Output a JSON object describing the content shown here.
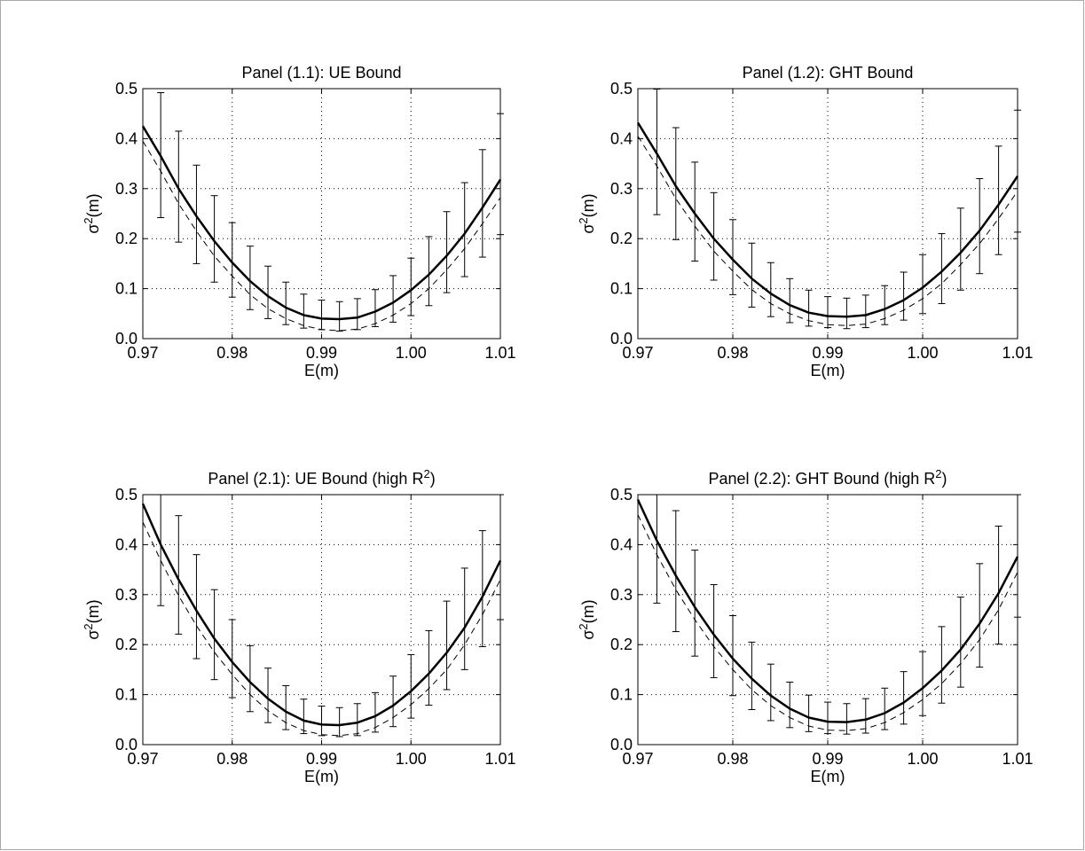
{
  "chart_data": [
    {
      "type": "line",
      "title": "Panel (1.1): UE Bound",
      "xlabel": "E(m)",
      "ylabel": "σ²(m)",
      "xlim": [
        0.97,
        1.01
      ],
      "ylim": [
        0.0,
        0.5
      ],
      "xticks": [
        "0.97",
        "0.98",
        "0.99",
        "1.00",
        "1.01"
      ],
      "yticks": [
        "0.0",
        "0.1",
        "0.2",
        "0.3",
        "0.4",
        "0.5"
      ],
      "grid": true,
      "x": [
        0.97,
        0.972,
        0.974,
        0.976,
        0.978,
        0.98,
        0.982,
        0.984,
        0.986,
        0.988,
        0.99,
        0.992,
        0.994,
        0.996,
        0.998,
        1.0,
        1.002,
        1.004,
        1.006,
        1.008,
        1.01
      ],
      "series": [
        {
          "style": "solid",
          "values": [
            0.425,
            0.365,
            0.3,
            0.245,
            0.195,
            0.152,
            0.115,
            0.085,
            0.062,
            0.047,
            0.04,
            0.039,
            0.042,
            0.054,
            0.072,
            0.097,
            0.128,
            0.166,
            0.21,
            0.262,
            0.318
          ]
        },
        {
          "style": "dashed",
          "values": [
            0.395,
            0.335,
            0.27,
            0.215,
            0.165,
            0.125,
            0.088,
            0.06,
            0.04,
            0.026,
            0.018,
            0.016,
            0.019,
            0.03,
            0.047,
            0.07,
            0.1,
            0.138,
            0.18,
            0.23,
            0.282
          ]
        },
        {
          "style": "errorbars",
          "x": [
            0.972,
            0.974,
            0.976,
            0.978,
            0.98,
            0.982,
            0.984,
            0.986,
            0.988,
            0.99,
            0.992,
            0.994,
            0.996,
            0.998,
            1.0,
            1.002,
            1.004,
            1.006,
            1.008,
            1.01
          ],
          "lower": [
            0.242,
            0.193,
            0.15,
            0.113,
            0.083,
            0.058,
            0.04,
            0.028,
            0.021,
            0.018,
            0.015,
            0.018,
            0.024,
            0.033,
            0.046,
            0.066,
            0.092,
            0.124,
            0.163,
            0.208
          ],
          "upper": [
            0.492,
            0.415,
            0.347,
            0.286,
            0.232,
            0.185,
            0.145,
            0.113,
            0.089,
            0.077,
            0.074,
            0.08,
            0.098,
            0.126,
            0.161,
            0.204,
            0.254,
            0.312,
            0.378,
            0.45
          ]
        }
      ]
    },
    {
      "type": "line",
      "title": "Panel (1.2): GHT Bound",
      "xlabel": "E(m)",
      "ylabel": "σ²(m)",
      "xlim": [
        0.97,
        1.01
      ],
      "ylim": [
        0.0,
        0.5
      ],
      "xticks": [
        "0.97",
        "0.98",
        "0.99",
        "1.00",
        "1.01"
      ],
      "yticks": [
        "0.0",
        "0.1",
        "0.2",
        "0.3",
        "0.4",
        "0.5"
      ],
      "grid": true,
      "x": [
        0.97,
        0.972,
        0.974,
        0.976,
        0.978,
        0.98,
        0.982,
        0.984,
        0.986,
        0.988,
        0.99,
        0.992,
        0.994,
        0.996,
        0.998,
        1.0,
        1.002,
        1.004,
        1.006,
        1.008,
        1.01
      ],
      "series": [
        {
          "style": "solid",
          "values": [
            0.432,
            0.37,
            0.305,
            0.25,
            0.2,
            0.158,
            0.12,
            0.09,
            0.067,
            0.052,
            0.045,
            0.044,
            0.047,
            0.059,
            0.077,
            0.102,
            0.134,
            0.172,
            0.216,
            0.268,
            0.325
          ]
        },
        {
          "style": "dashed",
          "values": [
            0.405,
            0.345,
            0.28,
            0.225,
            0.175,
            0.135,
            0.098,
            0.07,
            0.05,
            0.036,
            0.028,
            0.026,
            0.029,
            0.04,
            0.057,
            0.08,
            0.11,
            0.148,
            0.19,
            0.24,
            0.295
          ]
        },
        {
          "style": "errorbars",
          "x": [
            0.972,
            0.974,
            0.976,
            0.978,
            0.98,
            0.982,
            0.984,
            0.986,
            0.988,
            0.99,
            0.992,
            0.994,
            0.996,
            0.998,
            1.0,
            1.002,
            1.004,
            1.006,
            1.008,
            1.01
          ],
          "lower": [
            0.248,
            0.198,
            0.155,
            0.117,
            0.088,
            0.063,
            0.044,
            0.032,
            0.025,
            0.022,
            0.02,
            0.022,
            0.028,
            0.037,
            0.05,
            0.07,
            0.097,
            0.13,
            0.168,
            0.213
          ],
          "upper": [
            0.499,
            0.422,
            0.353,
            0.292,
            0.238,
            0.191,
            0.152,
            0.12,
            0.097,
            0.084,
            0.081,
            0.087,
            0.106,
            0.133,
            0.168,
            0.21,
            0.261,
            0.32,
            0.385,
            0.457
          ]
        }
      ]
    },
    {
      "type": "line",
      "title": "Panel (2.1): UE Bound (high R²)",
      "xlabel": "E(m)",
      "ylabel": "σ²(m)",
      "xlim": [
        0.97,
        1.01
      ],
      "ylim": [
        0.0,
        0.5
      ],
      "xticks": [
        "0.97",
        "0.98",
        "0.99",
        "1.00",
        "1.01"
      ],
      "yticks": [
        "0.0",
        "0.1",
        "0.2",
        "0.3",
        "0.4",
        "0.5"
      ],
      "grid": true,
      "x": [
        0.97,
        0.972,
        0.974,
        0.976,
        0.978,
        0.98,
        0.982,
        0.984,
        0.986,
        0.988,
        0.99,
        0.992,
        0.994,
        0.996,
        0.998,
        1.0,
        1.002,
        1.004,
        1.006,
        1.008,
        1.01
      ],
      "series": [
        {
          "style": "solid",
          "values": [
            0.482,
            0.4,
            0.33,
            0.268,
            0.212,
            0.165,
            0.125,
            0.092,
            0.066,
            0.048,
            0.04,
            0.039,
            0.044,
            0.057,
            0.078,
            0.107,
            0.142,
            0.184,
            0.234,
            0.296,
            0.368
          ]
        },
        {
          "style": "dashed",
          "values": [
            0.445,
            0.368,
            0.298,
            0.238,
            0.185,
            0.14,
            0.1,
            0.068,
            0.044,
            0.028,
            0.02,
            0.018,
            0.022,
            0.034,
            0.054,
            0.08,
            0.112,
            0.15,
            0.2,
            0.26,
            0.33
          ]
        },
        {
          "style": "errorbars",
          "x": [
            0.972,
            0.974,
            0.976,
            0.978,
            0.98,
            0.982,
            0.984,
            0.986,
            0.988,
            0.99,
            0.992,
            0.994,
            0.996,
            0.998,
            1.0,
            1.002,
            1.004,
            1.006,
            1.008,
            1.01
          ],
          "lower": [
            0.278,
            0.221,
            0.172,
            0.13,
            0.094,
            0.066,
            0.044,
            0.03,
            0.022,
            0.018,
            0.016,
            0.018,
            0.025,
            0.036,
            0.053,
            0.079,
            0.11,
            0.15,
            0.196,
            0.25
          ],
          "upper": [
            0.5,
            0.458,
            0.38,
            0.31,
            0.25,
            0.198,
            0.153,
            0.118,
            0.091,
            0.077,
            0.074,
            0.082,
            0.104,
            0.137,
            0.18,
            0.228,
            0.287,
            0.353,
            0.428,
            0.5
          ]
        }
      ]
    },
    {
      "type": "line",
      "title": "Panel (2.2): GHT Bound (high R²)",
      "xlabel": "E(m)",
      "ylabel": "σ²(m)",
      "xlim": [
        0.97,
        1.01
      ],
      "ylim": [
        0.0,
        0.5
      ],
      "xticks": [
        "0.97",
        "0.98",
        "0.99",
        "1.00",
        "1.01"
      ],
      "yticks": [
        "0.0",
        "0.1",
        "0.2",
        "0.3",
        "0.4",
        "0.5"
      ],
      "grid": true,
      "x": [
        0.97,
        0.972,
        0.974,
        0.976,
        0.978,
        0.98,
        0.982,
        0.984,
        0.986,
        0.988,
        0.99,
        0.992,
        0.994,
        0.996,
        0.998,
        1.0,
        1.002,
        1.004,
        1.006,
        1.008,
        1.01
      ],
      "series": [
        {
          "style": "solid",
          "values": [
            0.49,
            0.408,
            0.338,
            0.275,
            0.22,
            0.172,
            0.132,
            0.098,
            0.072,
            0.054,
            0.046,
            0.045,
            0.05,
            0.063,
            0.084,
            0.113,
            0.148,
            0.19,
            0.242,
            0.303,
            0.376
          ]
        },
        {
          "style": "dashed",
          "values": [
            0.46,
            0.38,
            0.31,
            0.25,
            0.196,
            0.15,
            0.11,
            0.078,
            0.054,
            0.037,
            0.029,
            0.028,
            0.032,
            0.044,
            0.064,
            0.09,
            0.122,
            0.162,
            0.21,
            0.27,
            0.345
          ]
        },
        {
          "style": "errorbars",
          "x": [
            0.972,
            0.974,
            0.976,
            0.978,
            0.98,
            0.982,
            0.984,
            0.986,
            0.988,
            0.99,
            0.992,
            0.994,
            0.996,
            0.998,
            1.0,
            1.002,
            1.004,
            1.006,
            1.008,
            1.01
          ],
          "lower": [
            0.283,
            0.226,
            0.177,
            0.134,
            0.098,
            0.07,
            0.048,
            0.034,
            0.026,
            0.022,
            0.021,
            0.023,
            0.03,
            0.041,
            0.058,
            0.083,
            0.115,
            0.155,
            0.201,
            0.255
          ],
          "upper": [
            0.5,
            0.468,
            0.389,
            0.32,
            0.258,
            0.205,
            0.161,
            0.125,
            0.099,
            0.085,
            0.082,
            0.092,
            0.113,
            0.146,
            0.186,
            0.236,
            0.295,
            0.362,
            0.437,
            0.5
          ]
        }
      ]
    }
  ]
}
